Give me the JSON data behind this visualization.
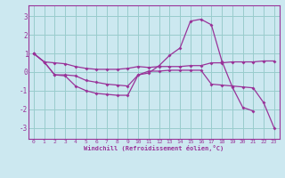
{
  "xlabel": "Windchill (Refroidissement éolien,°C)",
  "bg_color": "#cce8f0",
  "grid_color": "#99cccc",
  "line_color": "#993399",
  "x_ticks": [
    0,
    1,
    2,
    3,
    4,
    5,
    6,
    7,
    8,
    9,
    10,
    11,
    12,
    13,
    14,
    15,
    16,
    17,
    18,
    19,
    20,
    21,
    22,
    23
  ],
  "y_ticks": [
    -3,
    -2,
    -1,
    0,
    1,
    2,
    3
  ],
  "xlim": [
    -0.5,
    23.5
  ],
  "ylim": [
    -3.6,
    3.6
  ],
  "curves": [
    {
      "x": [
        0,
        1,
        2,
        3,
        4,
        5,
        6,
        7,
        8,
        9,
        10,
        11,
        12,
        13,
        14,
        15,
        16,
        17,
        18,
        19,
        20,
        21,
        22,
        23
      ],
      "y": [
        1.0,
        0.55,
        0.5,
        0.45,
        0.3,
        0.2,
        0.15,
        0.15,
        0.15,
        0.2,
        0.3,
        0.25,
        0.3,
        0.3,
        0.3,
        0.35,
        0.35,
        0.5,
        0.5,
        0.55,
        0.55,
        0.55,
        0.6,
        0.6
      ]
    },
    {
      "x": [
        0,
        1,
        2,
        3,
        4,
        5,
        6,
        7,
        8,
        9,
        10,
        11,
        12,
        13,
        14,
        15,
        16,
        17,
        18,
        19,
        20,
        21
      ],
      "y": [
        1.0,
        0.55,
        -0.15,
        -0.15,
        -0.2,
        -0.45,
        -0.55,
        -0.65,
        -0.7,
        -0.75,
        -0.15,
        -0.05,
        0.35,
        0.9,
        1.3,
        2.75,
        2.85,
        2.55,
        0.6,
        -0.8,
        -1.9,
        -2.1
      ]
    },
    {
      "x": [
        0,
        1,
        2,
        3,
        4,
        5,
        6,
        7,
        8,
        9,
        10,
        11,
        12,
        13,
        14,
        15,
        16,
        17,
        18,
        19,
        20,
        21,
        22,
        23
      ],
      "y": [
        1.0,
        0.55,
        -0.15,
        -0.2,
        -0.75,
        -1.0,
        -1.15,
        -1.2,
        -1.25,
        -1.25,
        -0.15,
        0.05,
        0.05,
        0.1,
        0.1,
        0.1,
        0.1,
        -0.65,
        -0.7,
        -0.75,
        -0.8,
        -0.85,
        -1.65,
        -3.0
      ]
    }
  ]
}
